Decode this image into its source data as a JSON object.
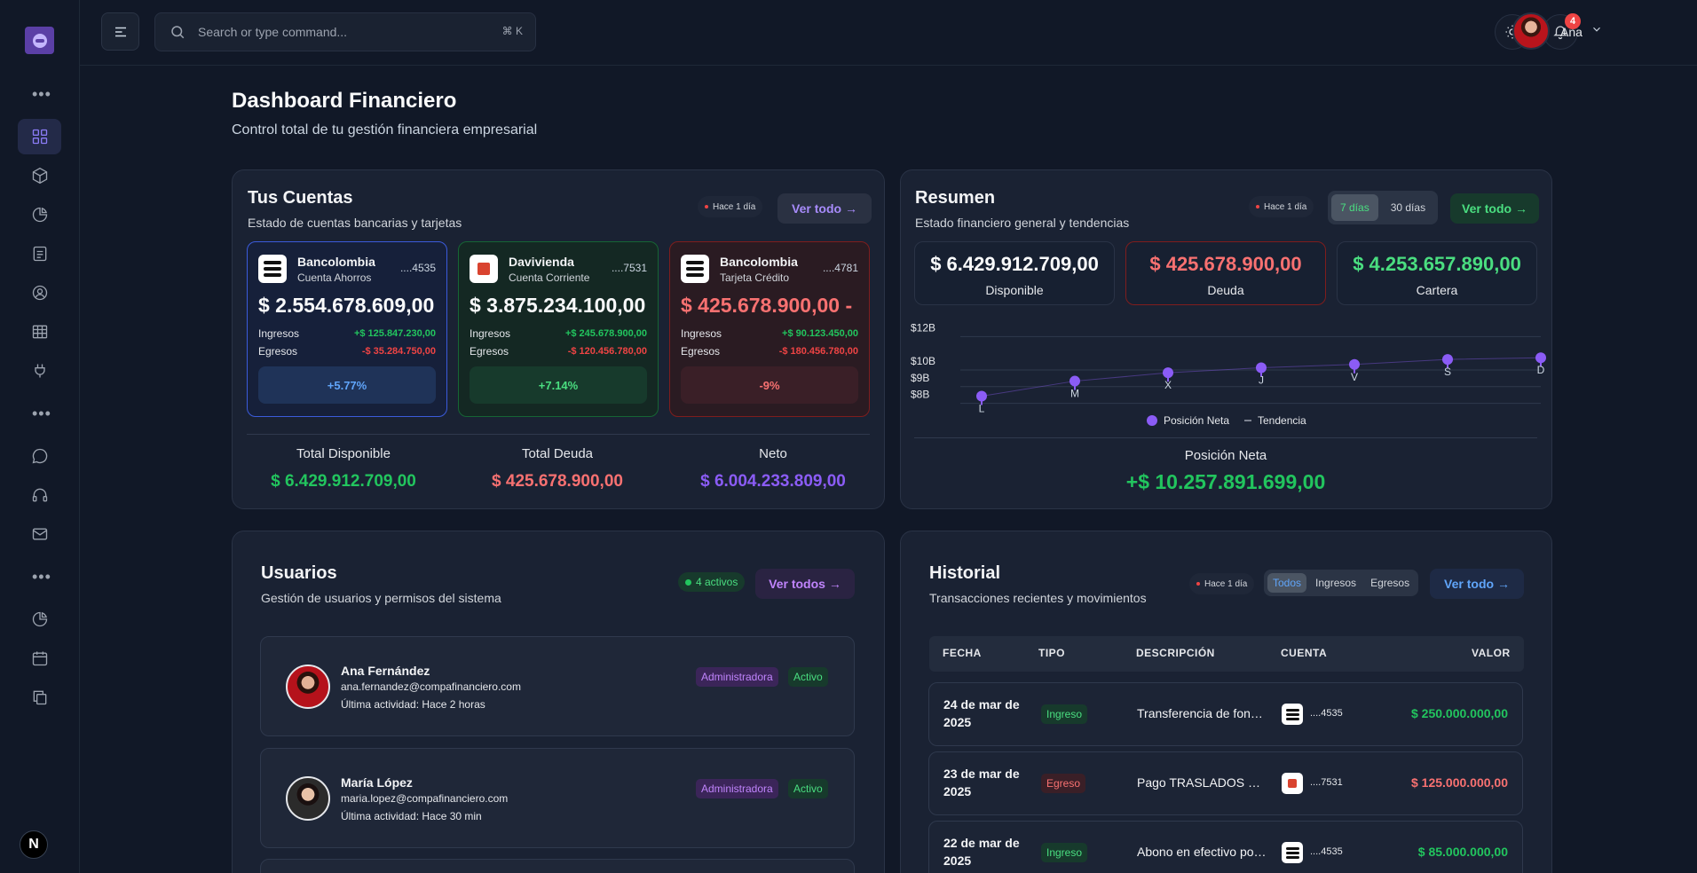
{
  "colors": {
    "green": "#22c55e",
    "red": "#ef4444",
    "purple": "#8b5cf6",
    "blue": "#60a5fa"
  },
  "topbar": {
    "search_placeholder": "Search or type command...",
    "search_shortcut": "⌘ K",
    "notifications": "4",
    "user_name": "Ana"
  },
  "sidebar": {
    "icons": [
      "dashboard-icon",
      "box-icon",
      "pie-chart-icon",
      "document-icon",
      "user-circle-icon",
      "table-icon",
      "plug-icon",
      "chat-icon",
      "headphones-icon",
      "mail-icon",
      "pie-chart-icon",
      "calendar-icon",
      "copy-icon"
    ],
    "bottom_badge": "N"
  },
  "header": {
    "title": "Dashboard Financiero",
    "subtitle": "Control total de tu gestión financiera empresarial"
  },
  "cuentas": {
    "title": "Tus Cuentas",
    "subtitle": "Estado de cuentas bancarias y tarjetas",
    "updated": "Hace 1 día",
    "view_all": "Ver todo →",
    "accounts": [
      {
        "bank": "Bancolombia",
        "type": "Cuenta Ahorros",
        "number": "....4535",
        "balance": "$ 2.554.678.609,00",
        "ingresos_label": "Ingresos",
        "ingresos": "+$ 125.847.230,00",
        "egresos_label": "Egresos",
        "egresos": "-$ 35.284.750,00",
        "change": "+5.77%"
      },
      {
        "bank": "Davivienda",
        "type": "Cuenta Corriente",
        "number": "....7531",
        "balance": "$ 3.875.234.100,00",
        "ingresos_label": "Ingresos",
        "ingresos": "+$ 245.678.900,00",
        "egresos_label": "Egresos",
        "egresos": "-$ 120.456.780,00",
        "change": "+7.14%"
      },
      {
        "bank": "Bancolombia",
        "type": "Tarjeta Crédito",
        "number": "....4781",
        "balance": "$ 425.678.900,00 -",
        "ingresos_label": "Ingresos",
        "ingresos": "+$ 90.123.450,00",
        "egresos_label": "Egresos",
        "egresos": "-$ 180.456.780,00",
        "change": "-9%"
      }
    ],
    "totals": [
      {
        "label": "Total Disponible",
        "value": "$ 6.429.912.709,00"
      },
      {
        "label": "Total Deuda",
        "value": "$ 425.678.900,00"
      },
      {
        "label": "Neto",
        "value": "$ 6.004.233.809,00"
      }
    ]
  },
  "resumen": {
    "title": "Resumen",
    "subtitle": "Estado financiero general y tendencias",
    "updated": "Hace 1 día",
    "range_options": [
      "7 días",
      "30 días"
    ],
    "range_selected": "7 días",
    "view_all": "Ver todo →",
    "boxes": [
      {
        "value": "$ 6.429.912.709,00",
        "label": "Disponible"
      },
      {
        "value": "$ 425.678.900,00",
        "label": "Deuda"
      },
      {
        "value": "$ 4.253.657.890,00",
        "label": "Cartera"
      }
    ],
    "net_label": "Posición Neta",
    "net_value": "+$ 10.257.891.699,00"
  },
  "chart_data": {
    "type": "line",
    "categories": [
      "L",
      "M",
      "X",
      "J",
      "V",
      "S",
      "D"
    ],
    "series": [
      {
        "name": "Posición Neta",
        "values": [
          7.9,
          8.8,
          9.3,
          9.6,
          9.8,
          10.1,
          10.2
        ]
      }
    ],
    "legend": [
      "Posición Neta",
      "Tendencia"
    ],
    "y_ticks": [
      "$12B",
      "$10B",
      "$9B",
      "$8B"
    ],
    "ylim": [
      7.5,
      12.5
    ],
    "grid": true,
    "legend_position": "bottom"
  },
  "usuarios": {
    "title": "Usuarios",
    "subtitle": "Gestión de usuarios y permisos del sistema",
    "active_badge": "4 activos",
    "view_all": "Ver todos →",
    "users": [
      {
        "name": "Ana Fernández",
        "email": "ana.fernandez@compafinanciero.com",
        "activity": "Última actividad: Hace 2 horas",
        "role": "Administradora",
        "status": "Activo"
      },
      {
        "name": "María López",
        "email": "maria.lopez@compafinanciero.com",
        "activity": "Última actividad: Hace 30 min",
        "role": "Administradora",
        "status": "Activo"
      }
    ]
  },
  "historial": {
    "title": "Historial",
    "subtitle": "Transacciones recientes y movimientos",
    "updated": "Hace 1 día",
    "filters": [
      "Todos",
      "Ingresos",
      "Egresos"
    ],
    "filter_selected": "Todos",
    "view_all": "Ver todo →",
    "columns": [
      "FECHA",
      "TIPO",
      "DESCRIPCIÓN",
      "CUENTA",
      "VALOR"
    ],
    "rows": [
      {
        "date": "24 de mar de 2025",
        "type": "Ingreso",
        "description": "Transferencia de fondos",
        "account": "....4535",
        "bank": "bancolombia",
        "value": "$ 250.000.000,00"
      },
      {
        "date": "23 de mar de 2025",
        "type": "Egreso",
        "description": "Pago TRASLADOS hacia",
        "account": "....7531",
        "bank": "davivienda",
        "value": "$ 125.000.000,00"
      },
      {
        "date": "22 de mar de 2025",
        "type": "Ingreso",
        "description": "Abono en efectivo por caja",
        "account": "....4535",
        "bank": "bancolombia",
        "value": "$ 85.000.000,00"
      }
    ]
  }
}
